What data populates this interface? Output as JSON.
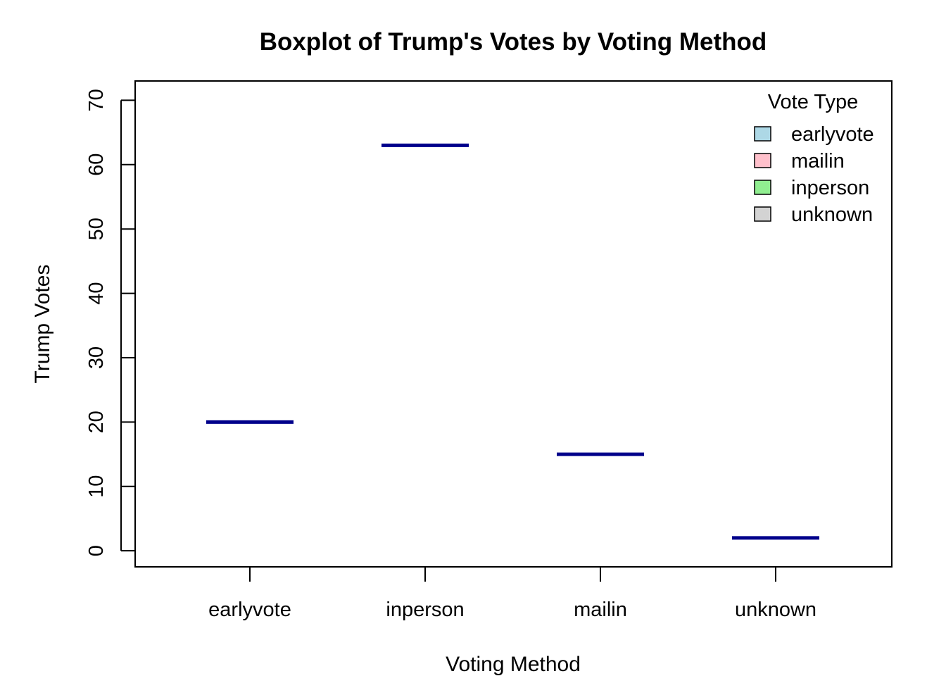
{
  "chart_data": {
    "type": "box",
    "title": "Boxplot of Trump's Votes by Voting Method",
    "xlabel": "Voting Method",
    "ylabel": "Trump Votes",
    "categories": [
      "earlyvote",
      "inperson",
      "mailin",
      "unknown"
    ],
    "values": [
      20,
      63,
      15,
      2
    ],
    "ylim": [
      -2.5,
      73
    ],
    "yticks": [
      0,
      10,
      20,
      30,
      40,
      50,
      60,
      70
    ],
    "ytick_labels": [
      "0",
      "10",
      "20",
      "30",
      "40",
      "50",
      "60",
      "70"
    ],
    "grid": false,
    "median_color": "#00008b",
    "legend": {
      "title": "Vote Type",
      "position": "top-right",
      "items": [
        {
          "label": "earlyvote",
          "color": "#add8e6"
        },
        {
          "label": "mailin",
          "color": "#ffc0cb"
        },
        {
          "label": "inperson",
          "color": "#90ee90"
        },
        {
          "label": "unknown",
          "color": "#d3d3d3"
        }
      ]
    }
  }
}
